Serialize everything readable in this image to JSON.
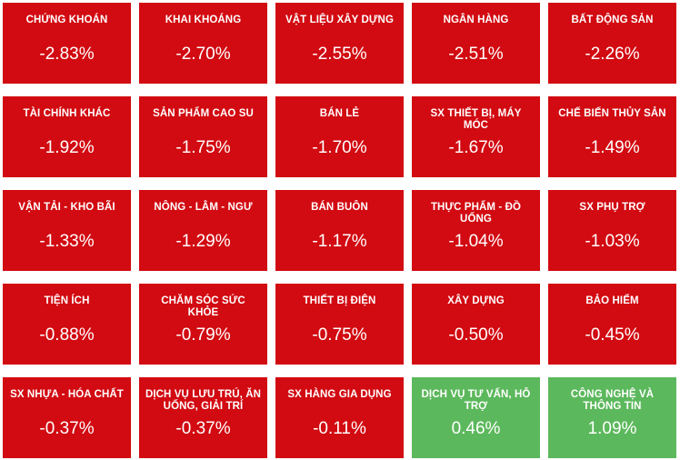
{
  "colors": {
    "negative": "#d20a11",
    "positive": "#5cb85c",
    "background": "#ffffff",
    "text": "#ffffff"
  },
  "chart_data": {
    "type": "heatmap",
    "value_unit": "%",
    "tiles": [
      {
        "label": "CHỨNG KHOÁN",
        "value": -2.83,
        "display": "-2.83%"
      },
      {
        "label": "KHAI KHOÁNG",
        "value": -2.7,
        "display": "-2.70%"
      },
      {
        "label": "VẬT LIỆU XÂY DỰNG",
        "value": -2.55,
        "display": "-2.55%"
      },
      {
        "label": "NGÂN HÀNG",
        "value": -2.51,
        "display": "-2.51%"
      },
      {
        "label": "BẤT ĐỘNG SẢN",
        "value": -2.26,
        "display": "-2.26%"
      },
      {
        "label": "TÀI CHÍNH KHÁC",
        "value": -1.92,
        "display": "-1.92%"
      },
      {
        "label": "SẢN PHẨM CAO SU",
        "value": -1.75,
        "display": "-1.75%"
      },
      {
        "label": "BÁN LẺ",
        "value": -1.7,
        "display": "-1.70%"
      },
      {
        "label": "SX THIẾT BỊ, MÁY MÓC",
        "value": -1.67,
        "display": "-1.67%"
      },
      {
        "label": "CHẾ BIẾN THỦY SẢN",
        "value": -1.49,
        "display": "-1.49%"
      },
      {
        "label": "VẬN TẢI - KHO BÃI",
        "value": -1.33,
        "display": "-1.33%"
      },
      {
        "label": "NÔNG - LÂM - NGƯ",
        "value": -1.29,
        "display": "-1.29%"
      },
      {
        "label": "BÁN BUÔN",
        "value": -1.17,
        "display": "-1.17%"
      },
      {
        "label": "THỰC PHẨM - ĐỒ UỐNG",
        "value": -1.04,
        "display": "-1.04%"
      },
      {
        "label": "SX PHỤ TRỢ",
        "value": -1.03,
        "display": "-1.03%"
      },
      {
        "label": "TIỆN ÍCH",
        "value": -0.88,
        "display": "-0.88%"
      },
      {
        "label": "CHĂM SÓC SỨC KHỎE",
        "value": -0.79,
        "display": "-0.79%"
      },
      {
        "label": "THIẾT BỊ ĐIỆN",
        "value": -0.75,
        "display": "-0.75%"
      },
      {
        "label": "XÂY DỰNG",
        "value": -0.5,
        "display": "-0.50%"
      },
      {
        "label": "BẢO HIỂM",
        "value": -0.45,
        "display": "-0.45%"
      },
      {
        "label": "SX NHỰA - HÓA CHẤT",
        "value": -0.37,
        "display": "-0.37%"
      },
      {
        "label": "DỊCH VỤ LƯU TRÚ, ĂN UỐNG, GIẢI TRÍ",
        "value": -0.37,
        "display": "-0.37%"
      },
      {
        "label": "SX HÀNG GIA DỤNG",
        "value": -0.11,
        "display": "-0.11%"
      },
      {
        "label": "DỊCH VỤ TƯ VẤN, HỖ TRỢ",
        "value": 0.46,
        "display": "0.46%"
      },
      {
        "label": "CÔNG NGHỆ VÀ THÔNG TIN",
        "value": 1.09,
        "display": "1.09%"
      }
    ]
  }
}
